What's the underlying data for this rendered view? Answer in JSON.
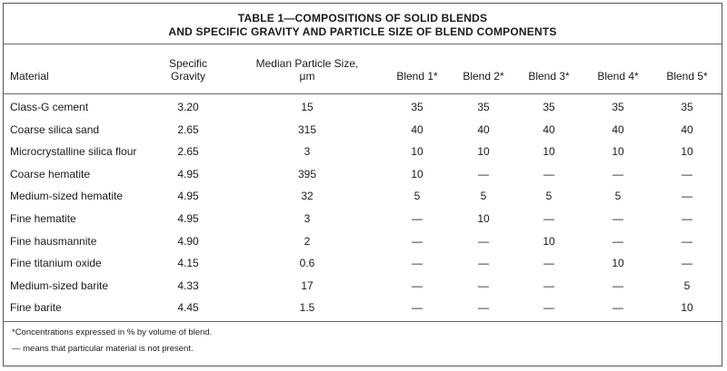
{
  "title_line1": "TABLE 1—COMPOSITIONS OF SOLID BLENDS",
  "title_line2": "AND SPECIFIC GRAVITY AND PARTICLE SIZE OF BLEND COMPONENTS",
  "headers": {
    "material": "Material",
    "sg_line1": "Specific",
    "sg_line2": "Gravity",
    "size_line1": "Median Particle Size,",
    "size_line2": "μm",
    "blend1": "Blend 1*",
    "blend2": "Blend 2*",
    "blend3": "Blend 3*",
    "blend4": "Blend 4*",
    "blend5": "Blend 5*"
  },
  "rows": [
    [
      "Class-G cement",
      "3.20",
      "15",
      "35",
      "35",
      "35",
      "35",
      "35"
    ],
    [
      "Coarse silica sand",
      "2.65",
      "315",
      "40",
      "40",
      "40",
      "40",
      "40"
    ],
    [
      "Microcrystalline silica flour",
      "2.65",
      "3",
      "10",
      "10",
      "10",
      "10",
      "10"
    ],
    [
      "Coarse hematite",
      "4.95",
      "395",
      "10",
      "—",
      "—",
      "—",
      "—"
    ],
    [
      "Medium-sized hematite",
      "4.95",
      "32",
      "5",
      "5",
      "5",
      "5",
      "—"
    ],
    [
      "Fine hematite",
      "4.95",
      "3",
      "—",
      "10",
      "—",
      "—",
      "—"
    ],
    [
      "Fine hausmannite",
      "4.90",
      "2",
      "—",
      "—",
      "10",
      "—",
      "—"
    ],
    [
      "Fine titanium oxide",
      "4.15",
      "0.6",
      "—",
      "—",
      "—",
      "10",
      "—"
    ],
    [
      "Medium-sized barite",
      "4.33",
      "17",
      "—",
      "—",
      "—",
      "—",
      "5"
    ],
    [
      "Fine barite",
      "4.45",
      "1.5",
      "—",
      "—",
      "—",
      "—",
      "10"
    ]
  ],
  "footnotes": [
    "*Concentrations expressed in % by volume of blend.",
    "— means that particular material is not present."
  ]
}
